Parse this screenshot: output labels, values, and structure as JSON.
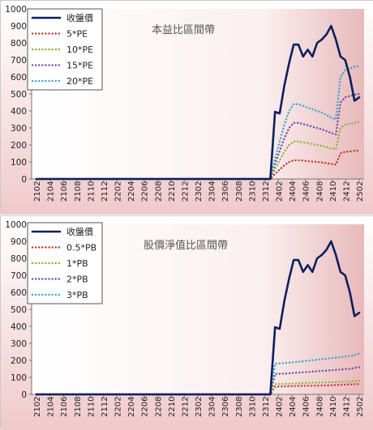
{
  "chart_data": [
    {
      "type": "line",
      "title": "本益比區間帶",
      "ylim": [
        0,
        1000
      ],
      "yticks": [
        0,
        100,
        200,
        300,
        400,
        500,
        600,
        700,
        800,
        900,
        1000
      ],
      "x_tick_labels": [
        "2102",
        "2104",
        "2106",
        "2108",
        "2110",
        "2112",
        "2202",
        "2204",
        "2206",
        "2208",
        "2210",
        "2212",
        "2302",
        "2304",
        "2306",
        "2308",
        "2310",
        "2312",
        "2402",
        "2404",
        "2406",
        "2408",
        "2410",
        "2412",
        "2502"
      ],
      "grid": false,
      "legend_position": "top-left",
      "series": [
        {
          "name": "收盤價",
          "color": "#0a1f5c",
          "style": "solid",
          "values": [
            0,
            0,
            0,
            0,
            0,
            0,
            0,
            0,
            0,
            0,
            0,
            0,
            0,
            0,
            0,
            0,
            0,
            0,
            0,
            0,
            0,
            0,
            0,
            0,
            0,
            0,
            0,
            0,
            0,
            0,
            0,
            0,
            0,
            0,
            0,
            0,
            0,
            0,
            0,
            0,
            0,
            0,
            0,
            0,
            0,
            0,
            0,
            0,
            0,
            0,
            0,
            395,
            385,
            550,
            680,
            790,
            790,
            720,
            760,
            720,
            800,
            820,
            850,
            900,
            820,
            720,
            700,
            600,
            460,
            480
          ]
        },
        {
          "name": "5*PE",
          "color": "#c0392b",
          "style": "dotted",
          "values": [
            0,
            0,
            0,
            0,
            0,
            0,
            0,
            0,
            0,
            0,
            0,
            0,
            0,
            0,
            0,
            0,
            0,
            0,
            0,
            0,
            0,
            0,
            0,
            0,
            0,
            0,
            0,
            0,
            0,
            0,
            0,
            0,
            0,
            0,
            0,
            0,
            0,
            0,
            0,
            0,
            0,
            0,
            0,
            0,
            0,
            0,
            0,
            0,
            0,
            0,
            0,
            30,
            55,
            80,
            100,
            110,
            110,
            108,
            105,
            102,
            100,
            97,
            93,
            88,
            85,
            150,
            160,
            162,
            165,
            167
          ]
        },
        {
          "name": "10*PE",
          "color": "#8db33a",
          "style": "dotted",
          "values": [
            0,
            0,
            0,
            0,
            0,
            0,
            0,
            0,
            0,
            0,
            0,
            0,
            0,
            0,
            0,
            0,
            0,
            0,
            0,
            0,
            0,
            0,
            0,
            0,
            0,
            0,
            0,
            0,
            0,
            0,
            0,
            0,
            0,
            0,
            0,
            0,
            0,
            0,
            0,
            0,
            0,
            0,
            0,
            0,
            0,
            0,
            0,
            0,
            0,
            0,
            0,
            60,
            110,
            160,
            200,
            220,
            220,
            215,
            210,
            205,
            200,
            195,
            188,
            180,
            175,
            300,
            320,
            325,
            330,
            335
          ]
        },
        {
          "name": "15*PE",
          "color": "#6b4fa8",
          "style": "dotted",
          "values": [
            0,
            0,
            0,
            0,
            0,
            0,
            0,
            0,
            0,
            0,
            0,
            0,
            0,
            0,
            0,
            0,
            0,
            0,
            0,
            0,
            0,
            0,
            0,
            0,
            0,
            0,
            0,
            0,
            0,
            0,
            0,
            0,
            0,
            0,
            0,
            0,
            0,
            0,
            0,
            0,
            0,
            0,
            0,
            0,
            0,
            0,
            0,
            0,
            0,
            0,
            0,
            90,
            165,
            240,
            300,
            330,
            330,
            323,
            315,
            307,
            300,
            292,
            282,
            270,
            262,
            450,
            480,
            488,
            495,
            500
          ]
        },
        {
          "name": "20*PE",
          "color": "#3aa5c9",
          "style": "dotted",
          "values": [
            0,
            0,
            0,
            0,
            0,
            0,
            0,
            0,
            0,
            0,
            0,
            0,
            0,
            0,
            0,
            0,
            0,
            0,
            0,
            0,
            0,
            0,
            0,
            0,
            0,
            0,
            0,
            0,
            0,
            0,
            0,
            0,
            0,
            0,
            0,
            0,
            0,
            0,
            0,
            0,
            0,
            0,
            0,
            0,
            0,
            0,
            0,
            0,
            0,
            0,
            0,
            120,
            220,
            320,
            400,
            440,
            440,
            430,
            420,
            410,
            400,
            390,
            376,
            360,
            350,
            600,
            640,
            650,
            660,
            665
          ]
        }
      ]
    },
    {
      "type": "line",
      "title": "股價淨值比區間帶",
      "ylim": [
        0,
        1000
      ],
      "yticks": [
        0,
        100,
        200,
        300,
        400,
        500,
        600,
        700,
        800,
        900,
        1000
      ],
      "x_tick_labels": [
        "2102",
        "2104",
        "2106",
        "2108",
        "2110",
        "2112",
        "2202",
        "2204",
        "2206",
        "2208",
        "2210",
        "2212",
        "2302",
        "2304",
        "2306",
        "2308",
        "2310",
        "2312",
        "2402",
        "2404",
        "2406",
        "2408",
        "2410",
        "2412",
        "2502"
      ],
      "grid": false,
      "legend_position": "top-left",
      "series": [
        {
          "name": "收盤價",
          "color": "#0a1f5c",
          "style": "solid",
          "values": [
            0,
            0,
            0,
            0,
            0,
            0,
            0,
            0,
            0,
            0,
            0,
            0,
            0,
            0,
            0,
            0,
            0,
            0,
            0,
            0,
            0,
            0,
            0,
            0,
            0,
            0,
            0,
            0,
            0,
            0,
            0,
            0,
            0,
            0,
            0,
            0,
            0,
            0,
            0,
            0,
            0,
            0,
            0,
            0,
            0,
            0,
            0,
            0,
            0,
            0,
            0,
            395,
            385,
            550,
            680,
            790,
            790,
            720,
            760,
            720,
            800,
            820,
            850,
            900,
            820,
            720,
            700,
            600,
            460,
            480
          ]
        },
        {
          "name": "0.5*PB",
          "color": "#c0392b",
          "style": "dotted",
          "values": [
            0,
            0,
            0,
            0,
            0,
            0,
            0,
            0,
            0,
            0,
            0,
            0,
            0,
            0,
            0,
            0,
            0,
            0,
            0,
            0,
            0,
            0,
            0,
            0,
            0,
            0,
            0,
            0,
            0,
            0,
            0,
            0,
            0,
            0,
            0,
            0,
            0,
            0,
            0,
            0,
            0,
            0,
            0,
            0,
            0,
            0,
            0,
            0,
            0,
            0,
            0,
            45,
            46,
            47,
            48,
            49,
            50,
            50,
            51,
            51,
            52,
            52,
            53,
            54,
            55,
            56,
            57,
            58,
            60,
            60
          ]
        },
        {
          "name": "1*PB",
          "color": "#8db33a",
          "style": "dotted",
          "values": [
            0,
            0,
            0,
            0,
            0,
            0,
            0,
            0,
            0,
            0,
            0,
            0,
            0,
            0,
            0,
            0,
            0,
            0,
            0,
            0,
            0,
            0,
            0,
            0,
            0,
            0,
            0,
            0,
            0,
            0,
            0,
            0,
            0,
            0,
            0,
            0,
            0,
            0,
            0,
            0,
            0,
            0,
            0,
            0,
            0,
            0,
            0,
            0,
            0,
            0,
            0,
            60,
            61,
            62,
            63,
            64,
            65,
            66,
            67,
            68,
            69,
            70,
            71,
            72,
            73,
            74,
            75,
            76,
            78,
            80
          ]
        },
        {
          "name": "2*PB",
          "color": "#6b4fa8",
          "style": "dotted",
          "values": [
            0,
            0,
            0,
            0,
            0,
            0,
            0,
            0,
            0,
            0,
            0,
            0,
            0,
            0,
            0,
            0,
            0,
            0,
            0,
            0,
            0,
            0,
            0,
            0,
            0,
            0,
            0,
            0,
            0,
            0,
            0,
            0,
            0,
            0,
            0,
            0,
            0,
            0,
            0,
            0,
            0,
            0,
            0,
            0,
            0,
            0,
            0,
            0,
            0,
            0,
            0,
            120,
            121,
            122,
            124,
            126,
            128,
            130,
            132,
            134,
            136,
            138,
            140,
            142,
            144,
            146,
            148,
            150,
            155,
            160
          ]
        },
        {
          "name": "3*PB",
          "color": "#3aa5c9",
          "style": "dotted",
          "values": [
            0,
            0,
            0,
            0,
            0,
            0,
            0,
            0,
            0,
            0,
            0,
            0,
            0,
            0,
            0,
            0,
            0,
            0,
            0,
            0,
            0,
            0,
            0,
            0,
            0,
            0,
            0,
            0,
            0,
            0,
            0,
            0,
            0,
            0,
            0,
            0,
            0,
            0,
            0,
            0,
            0,
            0,
            0,
            0,
            0,
            0,
            0,
            0,
            0,
            0,
            0,
            180,
            182,
            184,
            186,
            189,
            192,
            195,
            198,
            201,
            204,
            207,
            210,
            213,
            216,
            219,
            222,
            225,
            232,
            240
          ]
        }
      ]
    }
  ]
}
